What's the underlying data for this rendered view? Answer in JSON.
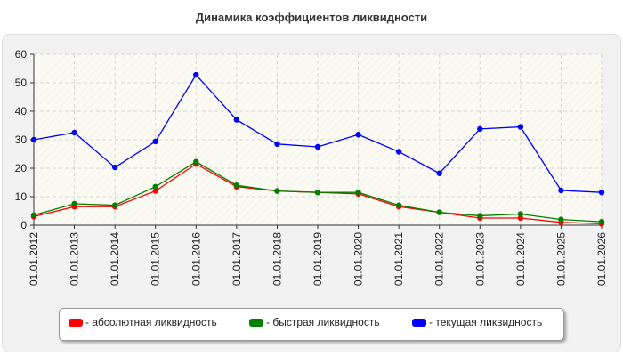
{
  "chart_data": {
    "type": "line",
    "title": "Динамика коэффициентов ликвидности",
    "categories": [
      "01.01.2012",
      "01.01.2013",
      "01.01.2014",
      "01.01.2015",
      "01.01.2016",
      "01.01.2017",
      "01.01.2018",
      "01.01.2019",
      "01.01.2020",
      "01.01.2021",
      "01.01.2022",
      "01.01.2023",
      "01.01.2024",
      "01.01.2025",
      "01.01.2026"
    ],
    "y_ticks": [
      "0",
      "10",
      "20",
      "30",
      "40",
      "50",
      "60"
    ],
    "ylim": [
      0,
      60
    ],
    "grid": true,
    "legend_position": "bottom",
    "series": [
      {
        "name": "- абсолютная ликвидность",
        "color": "#ff0000",
        "values": [
          3.0,
          6.5,
          6.5,
          12.0,
          21.5,
          13.5,
          12.0,
          11.5,
          11.0,
          6.5,
          4.5,
          2.5,
          2.5,
          1.0,
          0.5
        ]
      },
      {
        "name": "- быстрая ликвидность",
        "color": "#008000",
        "values": [
          3.5,
          7.5,
          7.0,
          13.5,
          22.3,
          14.0,
          12.0,
          11.5,
          11.5,
          7.0,
          4.5,
          3.3,
          3.9,
          2.0,
          1.2
        ]
      },
      {
        "name": "- текущая ликвидность",
        "color": "#0000ff",
        "values": [
          30.0,
          32.5,
          20.3,
          29.4,
          52.8,
          37.0,
          28.5,
          27.5,
          31.8,
          25.8,
          18.2,
          33.8,
          34.5,
          12.2,
          11.5
        ]
      }
    ]
  }
}
